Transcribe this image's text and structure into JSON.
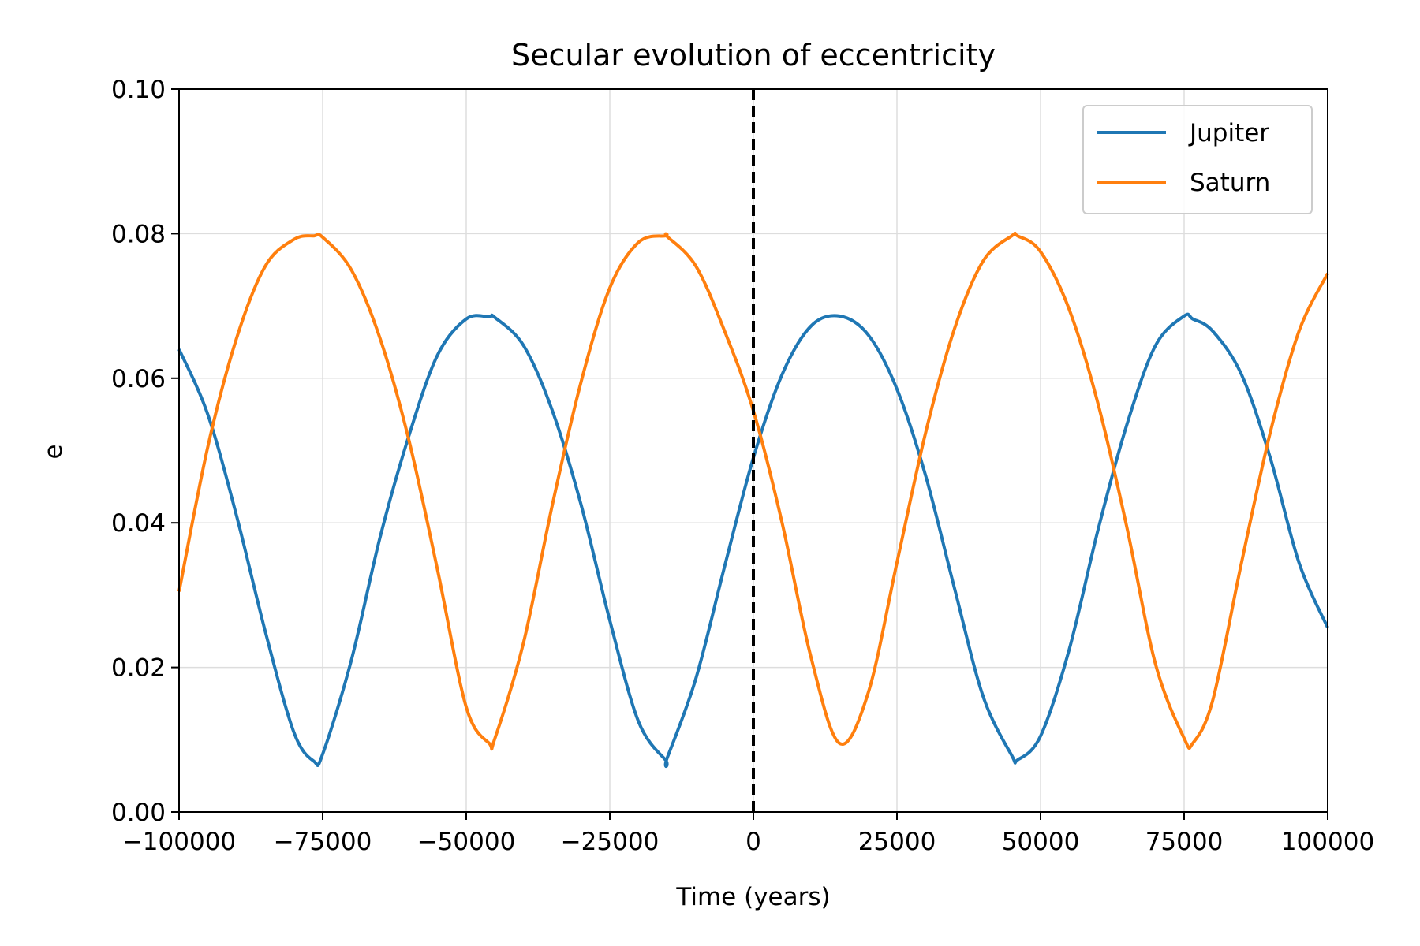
{
  "chart_data": {
    "type": "line",
    "title": "Secular evolution of eccentricity",
    "xlabel": "Time (years)",
    "ylabel": "e",
    "xlim": [
      -100000,
      100000
    ],
    "ylim": [
      0.0,
      0.1
    ],
    "x_tick_values": [
      -100000,
      -75000,
      -50000,
      -25000,
      0,
      25000,
      50000,
      75000,
      100000
    ],
    "x_tick_labels": [
      "−100000",
      "−75000",
      "−50000",
      "−25000",
      "0",
      "25000",
      "50000",
      "75000",
      "100000"
    ],
    "y_tick_values": [
      0.0,
      0.02,
      0.04,
      0.06,
      0.08,
      0.1
    ],
    "y_tick_labels": [
      "0.00",
      "0.02",
      "0.04",
      "0.06",
      "0.08",
      "0.10"
    ],
    "grid": true,
    "legend_position": "top-right",
    "reference_line": {
      "x": 0,
      "style": "dashed",
      "color": "#000000"
    },
    "x": [
      -100000,
      -95000,
      -90000,
      -85000,
      -80000,
      -76500,
      -75000,
      -70000,
      -65000,
      -60000,
      -55000,
      -50000,
      -46000,
      -45000,
      -40000,
      -35000,
      -30000,
      -25000,
      -20000,
      -15300,
      -15000,
      -10000,
      -5000,
      0,
      5000,
      10000,
      15000,
      20000,
      25000,
      30000,
      35000,
      40000,
      45000,
      46000,
      50000,
      55000,
      60000,
      65000,
      70000,
      75000,
      76500,
      80000,
      85000,
      90000,
      95000,
      100000
    ],
    "series": [
      {
        "name": "Jupiter",
        "color": "#1f77b4",
        "values": [
          0.064,
          0.055,
          0.041,
          0.025,
          0.011,
          0.007,
          0.008,
          0.021,
          0.038,
          0.052,
          0.0632,
          0.0682,
          0.0685,
          0.0684,
          0.0645,
          0.0555,
          0.0425,
          0.0265,
          0.0125,
          0.0072,
          0.0075,
          0.0185,
          0.034,
          0.049,
          0.0605,
          0.0672,
          0.0686,
          0.066,
          0.0585,
          0.0465,
          0.031,
          0.016,
          0.0078,
          0.0072,
          0.0105,
          0.0225,
          0.039,
          0.0535,
          0.0645,
          0.0686,
          0.0682,
          0.0665,
          0.0605,
          0.049,
          0.0345,
          0.0255
        ]
      },
      {
        "name": "Saturn",
        "color": "#ff7f0e",
        "values": [
          0.0305,
          0.0505,
          0.0655,
          0.0755,
          0.0792,
          0.0797,
          0.0795,
          0.075,
          0.0655,
          0.0515,
          0.0335,
          0.0145,
          0.0095,
          0.0102,
          0.0235,
          0.0425,
          0.0595,
          0.0725,
          0.0788,
          0.0797,
          0.0796,
          0.0755,
          0.0665,
          0.0555,
          0.04,
          0.0215,
          0.0095,
          0.0165,
          0.0345,
          0.0525,
          0.0668,
          0.0762,
          0.0797,
          0.0797,
          0.0775,
          0.0695,
          0.0565,
          0.0395,
          0.0205,
          0.0102,
          0.0095,
          0.0155,
          0.0345,
          0.0525,
          0.0665,
          0.0745
        ]
      }
    ]
  }
}
